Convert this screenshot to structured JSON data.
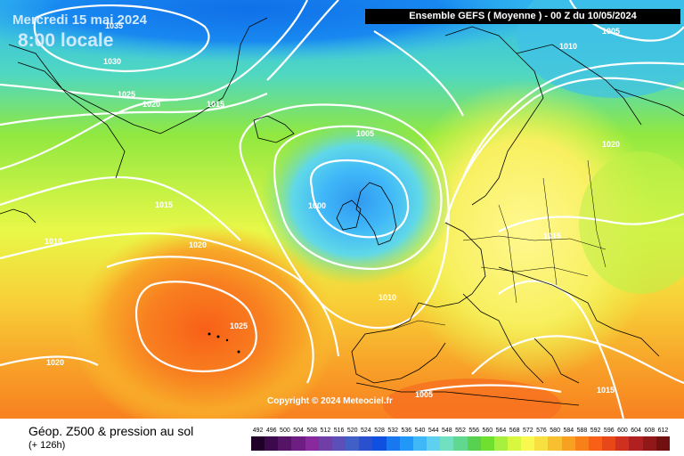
{
  "header": {
    "date": "Mercredi 15 mai 2024",
    "time": "8:00 locale",
    "model": "Ensemble GEFS  ( Moyenne )  -  00 Z du 10/05/2024"
  },
  "footer": {
    "parameter": "Géop. Z500 & pression au sol",
    "lead_time": "(+ 126h)",
    "copyright": "Copyright © 2024 Meteociel.fr"
  },
  "isobar_labels": [
    "1035",
    "1030",
    "1025",
    "1020",
    "1015",
    "1005",
    "1000",
    "1015",
    "1010",
    "1020",
    "1025",
    "1020",
    "1010",
    "1005",
    "1015",
    "1020",
    "1010",
    "1015",
    "1005"
  ],
  "legend": {
    "values": [
      "492",
      "496",
      "500",
      "504",
      "508",
      "512",
      "516",
      "520",
      "524",
      "528",
      "532",
      "536",
      "540",
      "544",
      "548",
      "552",
      "556",
      "560",
      "564",
      "568",
      "572",
      "576",
      "580",
      "584",
      "588",
      "592",
      "596",
      "600",
      "604",
      "608",
      "612"
    ],
    "colors": [
      "#200028",
      "#3a0a4c",
      "#551466",
      "#6e1e82",
      "#882a9e",
      "#6f3ea6",
      "#5a50b8",
      "#4060c8",
      "#2a50d0",
      "#1050e0",
      "#1878f0",
      "#2098f8",
      "#40b8f8",
      "#60d0f0",
      "#70e0c0",
      "#60d890",
      "#58d050",
      "#70e030",
      "#a8f040",
      "#d8f840",
      "#f8f850",
      "#f8e040",
      "#f8c030",
      "#f8a020",
      "#f88018",
      "#f86018",
      "#e84818",
      "#d03020",
      "#b02020",
      "#901818",
      "#701010"
    ]
  }
}
